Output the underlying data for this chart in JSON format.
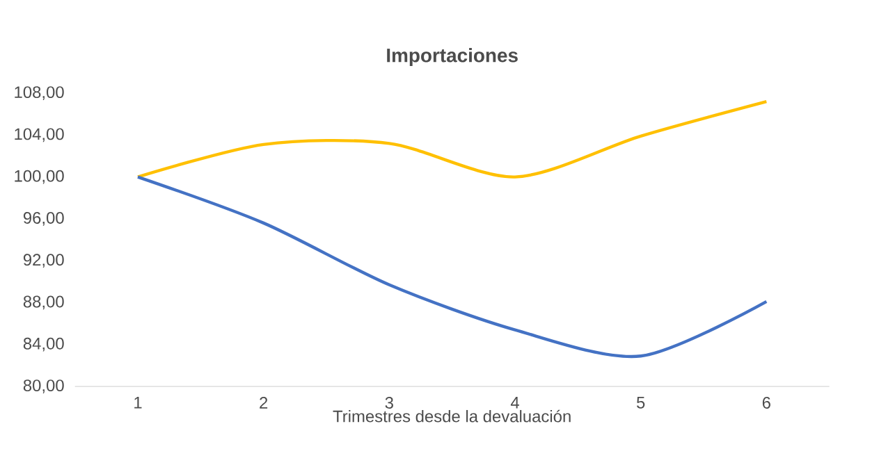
{
  "chart_data": {
    "type": "line",
    "title": "Importaciones",
    "xlabel": "Trimestres desde la devaluación",
    "categories": [
      "1",
      "2",
      "3",
      "4",
      "5",
      "6"
    ],
    "series": [
      {
        "color": "#ffc000",
        "values": [
          100.0,
          103.1,
          103.2,
          100.0,
          103.9,
          107.2
        ]
      },
      {
        "color": "#4472c4",
        "values": [
          100.0,
          95.6,
          89.7,
          85.4,
          82.9,
          88.1
        ]
      }
    ],
    "ylim": [
      80,
      108
    ],
    "yticks": [
      {
        "value": 80,
        "label": "80,00"
      },
      {
        "value": 84,
        "label": "84,00"
      },
      {
        "value": 88,
        "label": "88,00"
      },
      {
        "value": 92,
        "label": "92,00"
      },
      {
        "value": 96,
        "label": "96,00"
      },
      {
        "value": 100,
        "label": "100,00"
      },
      {
        "value": 104,
        "label": "104,00"
      },
      {
        "value": 108,
        "label": "108,00"
      }
    ],
    "marker": "none",
    "line_style": "solid"
  }
}
